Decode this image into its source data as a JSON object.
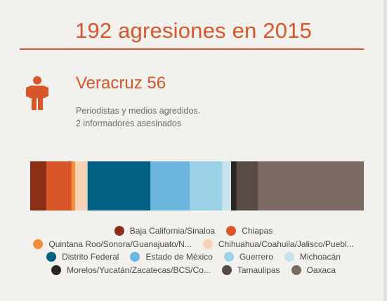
{
  "title": "192 agresiones en 2015",
  "highlight": {
    "headline": "Veracruz 56",
    "description_line_1": "Periodistas y medios agredidos.",
    "description_line_2": "2 informadores asesinados"
  },
  "colors": {
    "accent": "#d9562b",
    "icon": "#d9562b"
  },
  "icon": "person-icon",
  "chart_data": {
    "type": "bar",
    "orientation": "horizontal-stacked-100",
    "title": "",
    "categories": [
      "Baja California/Sinaloa",
      "Chiapas",
      "Quintana Roo/Sonora/Guanajuato/N...",
      "Chihuahua/Coahuila/Jalisco/Puebl...",
      "Distrito Federal",
      "Estado de México",
      "Guerrero",
      "Michoacán",
      "Morelos/Yucatán/Zacatecas/BCS/Co...",
      "Tamaulipas",
      "Oaxaca"
    ],
    "values": [
      9,
      14,
      2,
      7,
      35,
      22,
      18,
      5,
      3,
      12,
      59
    ],
    "colors": [
      "#8a2f14",
      "#d9562b",
      "#ef8f3a",
      "#f6d2b6",
      "#026084",
      "#6db6df",
      "#9bd2e6",
      "#c9e3ec",
      "#2b2521",
      "#584a44",
      "#7b6b62"
    ],
    "legend_position": "bottom",
    "legend_rows": [
      [
        0,
        1
      ],
      [
        2,
        3
      ],
      [
        4,
        5,
        6,
        7
      ],
      [
        8,
        9,
        10
      ]
    ]
  }
}
